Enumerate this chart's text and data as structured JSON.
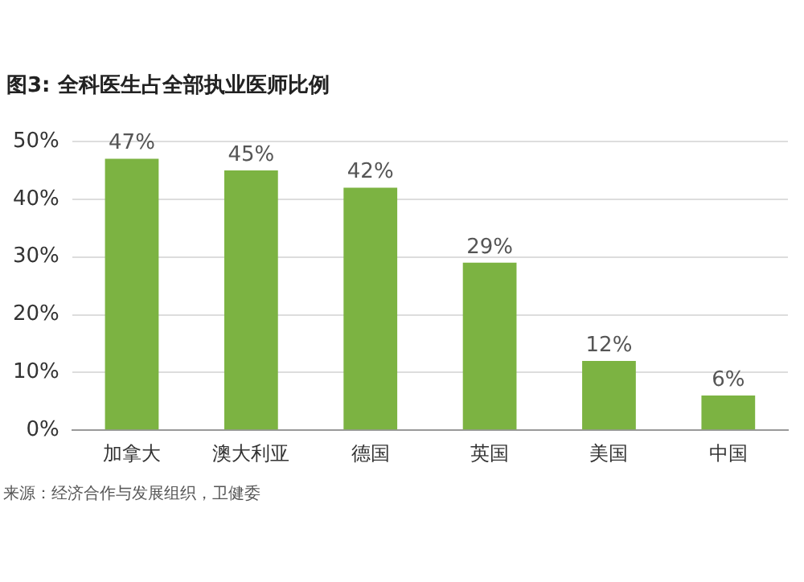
{
  "chart_data": {
    "type": "bar",
    "title": "图3: 全科医生占全部执业医师比例",
    "categories": [
      "加拿大",
      "澳大利亚",
      "德国",
      "英国",
      "美国",
      "中国"
    ],
    "values": [
      47,
      45,
      42,
      29,
      12,
      6
    ],
    "value_labels": [
      "47%",
      "45%",
      "42%",
      "29%",
      "12%",
      "6%"
    ],
    "color": "#7cb342",
    "ylim": [
      0,
      50
    ],
    "yticks": [
      {
        "value": 0,
        "label": "0%"
      },
      {
        "value": 10,
        "label": "10%"
      },
      {
        "value": 20,
        "label": "20%"
      },
      {
        "value": 30,
        "label": "30%"
      },
      {
        "value": 40,
        "label": "40%"
      },
      {
        "value": 50,
        "label": "50%"
      }
    ],
    "grid": "y",
    "annotations": [
      "来源：经济合作与发展组织，卫健委"
    ]
  }
}
